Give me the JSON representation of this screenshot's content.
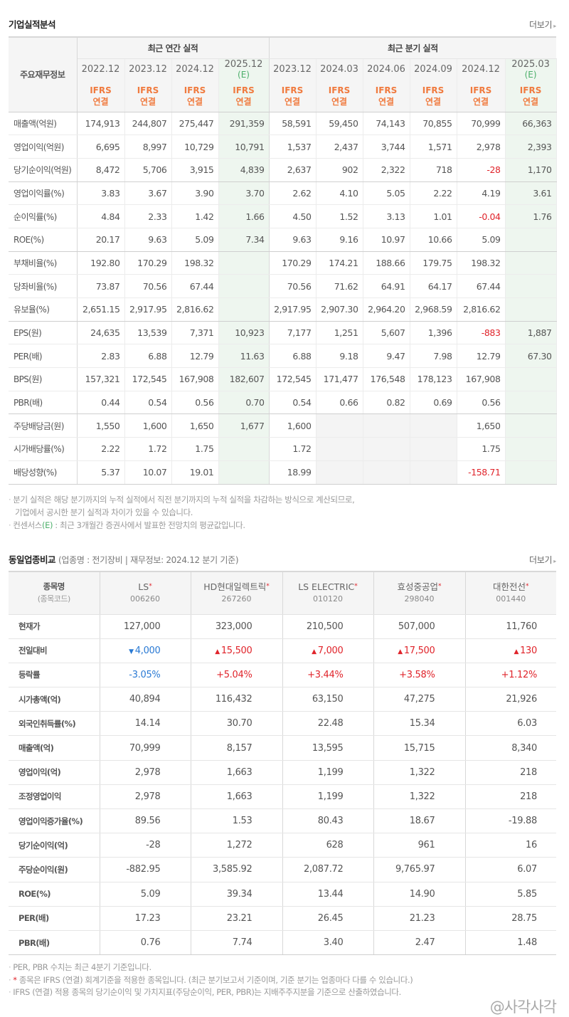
{
  "section1": {
    "title": "기업실적분석",
    "more_label": "더보기",
    "header_label": "주요재무정보",
    "annual_group": "최근 연간 실적",
    "quarter_group": "최근 분기 실적",
    "ifrs_line1": "IFRS",
    "ifrs_line2": "연결",
    "annual_periods": [
      {
        "period": "2022.12",
        "est": ""
      },
      {
        "period": "2023.12",
        "est": ""
      },
      {
        "period": "2024.12",
        "est": ""
      },
      {
        "period": "2025.12",
        "est": "(E)"
      }
    ],
    "quarter_periods": [
      {
        "period": "2023.12",
        "est": ""
      },
      {
        "period": "2024.03",
        "est": ""
      },
      {
        "period": "2024.06",
        "est": ""
      },
      {
        "period": "2024.09",
        "est": ""
      },
      {
        "period": "2024.12",
        "est": ""
      },
      {
        "period": "2025.03",
        "est": "(E)"
      }
    ],
    "rows": [
      {
        "label": "매출액(억원)",
        "annual": [
          "174,913",
          "244,807",
          "275,447",
          "291,359"
        ],
        "quarter": [
          "58,591",
          "59,450",
          "74,143",
          "70,855",
          "70,999",
          "66,363"
        ]
      },
      {
        "label": "영업이익(억원)",
        "annual": [
          "6,695",
          "8,997",
          "10,729",
          "10,791"
        ],
        "quarter": [
          "1,537",
          "2,437",
          "3,744",
          "1,571",
          "2,978",
          "2,393"
        ]
      },
      {
        "label": "당기순이익(억원)",
        "annual": [
          "8,472",
          "5,706",
          "3,915",
          "4,839"
        ],
        "quarter": [
          "2,637",
          "902",
          "2,322",
          "718",
          "-28",
          "1,170"
        ]
      },
      {
        "label": "영업이익률(%)",
        "annual": [
          "3.83",
          "3.67",
          "3.90",
          "3.70"
        ],
        "quarter": [
          "2.62",
          "4.10",
          "5.05",
          "2.22",
          "4.19",
          "3.61"
        ]
      },
      {
        "label": "순이익률(%)",
        "annual": [
          "4.84",
          "2.33",
          "1.42",
          "1.66"
        ],
        "quarter": [
          "4.50",
          "1.52",
          "3.13",
          "1.01",
          "-0.04",
          "1.76"
        ]
      },
      {
        "label": "ROE(%)",
        "annual": [
          "20.17",
          "9.63",
          "5.09",
          "7.34"
        ],
        "quarter": [
          "9.63",
          "9.16",
          "10.97",
          "10.66",
          "5.09",
          ""
        ]
      },
      {
        "label": "부채비율(%)",
        "annual": [
          "192.80",
          "170.29",
          "198.32",
          ""
        ],
        "quarter": [
          "170.29",
          "174.21",
          "188.66",
          "179.75",
          "198.32",
          ""
        ]
      },
      {
        "label": "당좌비율(%)",
        "annual": [
          "73.87",
          "70.56",
          "67.44",
          ""
        ],
        "quarter": [
          "70.56",
          "71.62",
          "64.91",
          "64.17",
          "67.44",
          ""
        ]
      },
      {
        "label": "유보율(%)",
        "annual": [
          "2,651.15",
          "2,917.95",
          "2,816.62",
          ""
        ],
        "quarter": [
          "2,917.95",
          "2,907.30",
          "2,964.20",
          "2,968.59",
          "2,816.62",
          ""
        ]
      },
      {
        "label": "EPS(원)",
        "annual": [
          "24,635",
          "13,539",
          "7,371",
          "10,923"
        ],
        "quarter": [
          "7,177",
          "1,251",
          "5,607",
          "1,396",
          "-883",
          "1,887"
        ]
      },
      {
        "label": "PER(배)",
        "annual": [
          "2.83",
          "6.88",
          "12.79",
          "11.63"
        ],
        "quarter": [
          "6.88",
          "9.18",
          "9.47",
          "7.98",
          "12.79",
          "67.30"
        ]
      },
      {
        "label": "BPS(원)",
        "annual": [
          "157,321",
          "172,545",
          "167,908",
          "182,607"
        ],
        "quarter": [
          "172,545",
          "171,477",
          "176,548",
          "178,123",
          "167,908",
          ""
        ]
      },
      {
        "label": "PBR(배)",
        "annual": [
          "0.44",
          "0.54",
          "0.56",
          "0.70"
        ],
        "quarter": [
          "0.54",
          "0.66",
          "0.82",
          "0.69",
          "0.56",
          ""
        ]
      },
      {
        "label": "주당배당금(원)",
        "annual": [
          "1,550",
          "1,600",
          "1,650",
          "1,677"
        ],
        "quarter": [
          "1,600",
          "",
          "",
          "",
          "1,650",
          ""
        ]
      },
      {
        "label": "시가배당률(%)",
        "annual": [
          "2.22",
          "1.72",
          "1.75",
          ""
        ],
        "quarter": [
          "1.72",
          "",
          "",
          "",
          "1.75",
          ""
        ]
      },
      {
        "label": "배당성향(%)",
        "annual": [
          "5.37",
          "10.07",
          "19.01",
          ""
        ],
        "quarter": [
          "18.99",
          "",
          "",
          "",
          "-158.71",
          ""
        ]
      }
    ],
    "notes": [
      "분기 실적은 해당 분기까지의 누적 실적에서 직전 분기까지의 누적 실적을 차감하는 방식으로 계산되므로,",
      "기업에서 공시한 분기 실적과 차이가 있을 수 있습니다.",
      "컨센서스",
      "(E)",
      " : 최근 3개월간 증권사에서 발표한 전망치의 평균값입니다."
    ]
  },
  "section2": {
    "title": "동일업종비교",
    "subtitle": "(업종명 : 전기장비 | 재무정보: 2024.12 분기 기준)",
    "more_label": "더보기",
    "header_label": "종목명",
    "header_sublabel": "(종목코드)",
    "companies": [
      {
        "name": "LS",
        "code": "006260"
      },
      {
        "name": "HD현대일렉트릭",
        "code": "267260"
      },
      {
        "name": "LS ELECTRIC",
        "code": "010120"
      },
      {
        "name": "효성중공업",
        "code": "298040"
      },
      {
        "name": "대한전선",
        "code": "001440"
      }
    ],
    "rows": [
      {
        "label": "현재가",
        "values": [
          "127,000",
          "323,000",
          "210,500",
          "507,000",
          "11,760"
        ]
      },
      {
        "label": "전일대비",
        "values": [
          "4,000",
          "15,500",
          "7,000",
          "17,500",
          "130"
        ],
        "dirs": [
          "down",
          "up",
          "up",
          "up",
          "up"
        ]
      },
      {
        "label": "등락률",
        "values": [
          "-3.05%",
          "+5.04%",
          "+3.44%",
          "+3.58%",
          "+1.12%"
        ],
        "dirs": [
          "down",
          "up",
          "up",
          "up",
          "up"
        ]
      },
      {
        "label": "시가총액(억)",
        "values": [
          "40,894",
          "116,432",
          "63,150",
          "47,275",
          "21,926"
        ]
      },
      {
        "label": "외국인취득률(%)",
        "values": [
          "14.14",
          "30.70",
          "22.48",
          "15.34",
          "6.03"
        ]
      },
      {
        "label": "매출액(억)",
        "values": [
          "70,999",
          "8,157",
          "13,595",
          "15,715",
          "8,340"
        ]
      },
      {
        "label": "영업이익(억)",
        "values": [
          "2,978",
          "1,663",
          "1,199",
          "1,322",
          "218"
        ]
      },
      {
        "label": "조정영업이익",
        "values": [
          "2,978",
          "1,663",
          "1,199",
          "1,322",
          "218"
        ]
      },
      {
        "label": "영업이익증가율(%)",
        "values": [
          "89.56",
          "1.53",
          "80.43",
          "18.67",
          "-19.88"
        ]
      },
      {
        "label": "당기순이익(억)",
        "values": [
          "-28",
          "1,272",
          "628",
          "961",
          "16"
        ]
      },
      {
        "label": "주당순이익(원)",
        "values": [
          "-882.95",
          "3,585.92",
          "2,087.72",
          "9,765.97",
          "6.07"
        ]
      },
      {
        "label": "ROE(%)",
        "values": [
          "5.09",
          "39.34",
          "13.44",
          "14.90",
          "5.85"
        ]
      },
      {
        "label": "PER(배)",
        "values": [
          "17.23",
          "23.21",
          "26.45",
          "21.23",
          "28.75"
        ]
      },
      {
        "label": "PBR(배)",
        "values": [
          "0.76",
          "7.74",
          "3.40",
          "2.47",
          "1.48"
        ]
      }
    ],
    "notes": [
      "PER, PBR 수치는 최근 4분기 기준입니다.",
      " 종목은 IFRS (연결) 회계기준을 적용한 종목입니다. (최근 분기보고서 기준이며, 기준 분기는 업종마다 다를 수 있습니다.)",
      "IFRS (연결) 적용 종목의 당기순이익 및 가치지표(주당순이익, PER, PBR)는 지배주주지분을 기준으로 산출하였습니다."
    ],
    "star_symbol": "*"
  },
  "watermark": "@사각사각",
  "icons": {
    "bullet": "·",
    "arrow_right": "▸",
    "tri_up": "▲",
    "tri_down": "▼"
  },
  "colors": {
    "ifrs": "#f07a3e",
    "estimate": "#4caf6a",
    "estimate_bg": "#eef6ef",
    "negative": "#e0242b",
    "down": "#2a7ad4"
  }
}
